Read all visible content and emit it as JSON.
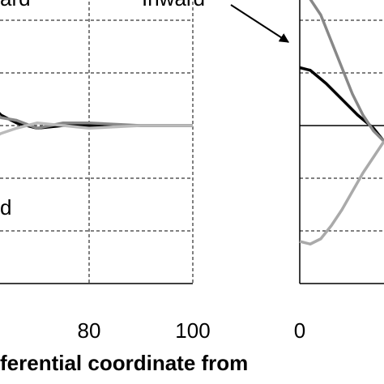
{
  "chart_data": [
    {
      "type": "line",
      "xlim": [
        60,
        100
      ],
      "ylim": [
        -3,
        3
      ],
      "xticks": [
        80,
        100
      ],
      "yticks": [
        -3,
        -2,
        -1,
        0,
        1,
        2,
        3
      ],
      "grid": true,
      "xlabel": "ferential coordinate from",
      "annotations": [
        "ard",
        "d"
      ],
      "series": [
        {
          "color": "#000000",
          "x": [
            60,
            63,
            66,
            70,
            75,
            80,
            90,
            100
          ],
          "values": [
            0.5,
            0.2,
            0.05,
            -0.05,
            0.0,
            0.0,
            0.0,
            0.0
          ]
        },
        {
          "color": "#888888",
          "x": [
            60,
            63,
            66,
            70,
            75,
            80,
            90,
            100
          ],
          "values": [
            0.4,
            0.15,
            0.1,
            -0.05,
            0.05,
            0.05,
            0.0,
            0.0
          ]
        },
        {
          "color": "#bbbbbb",
          "x": [
            60,
            63,
            66,
            70,
            75,
            80,
            90,
            100
          ],
          "values": [
            -0.3,
            -0.15,
            -0.05,
            0.05,
            0.0,
            -0.05,
            0.0,
            0.0
          ]
        }
      ]
    },
    {
      "type": "line",
      "xlim": [
        0,
        16
      ],
      "ylim": [
        -3,
        3
      ],
      "xticks": [
        0
      ],
      "yticks": [
        -3,
        -2,
        -1,
        0,
        1,
        2,
        3
      ],
      "grid": true,
      "annotations": [
        "Inward"
      ],
      "series": [
        {
          "color": "#000000",
          "x": [
            0,
            2,
            5,
            8,
            11,
            14,
            16
          ],
          "values": [
            1.1,
            1.05,
            0.8,
            0.5,
            0.2,
            -0.05,
            -0.3
          ]
        },
        {
          "color": "#888888",
          "x": [
            2,
            4,
            6,
            8,
            10,
            12,
            14,
            16
          ],
          "values": [
            2.4,
            2.1,
            1.6,
            1.1,
            0.6,
            0.2,
            -0.1,
            -0.3
          ]
        },
        {
          "color": "#aaaaaa",
          "x": [
            0,
            2,
            4,
            6,
            8,
            10,
            12,
            14,
            16
          ],
          "values": [
            -2.2,
            -2.25,
            -2.15,
            -1.9,
            -1.6,
            -1.25,
            -0.9,
            -0.6,
            -0.3
          ]
        }
      ]
    }
  ]
}
